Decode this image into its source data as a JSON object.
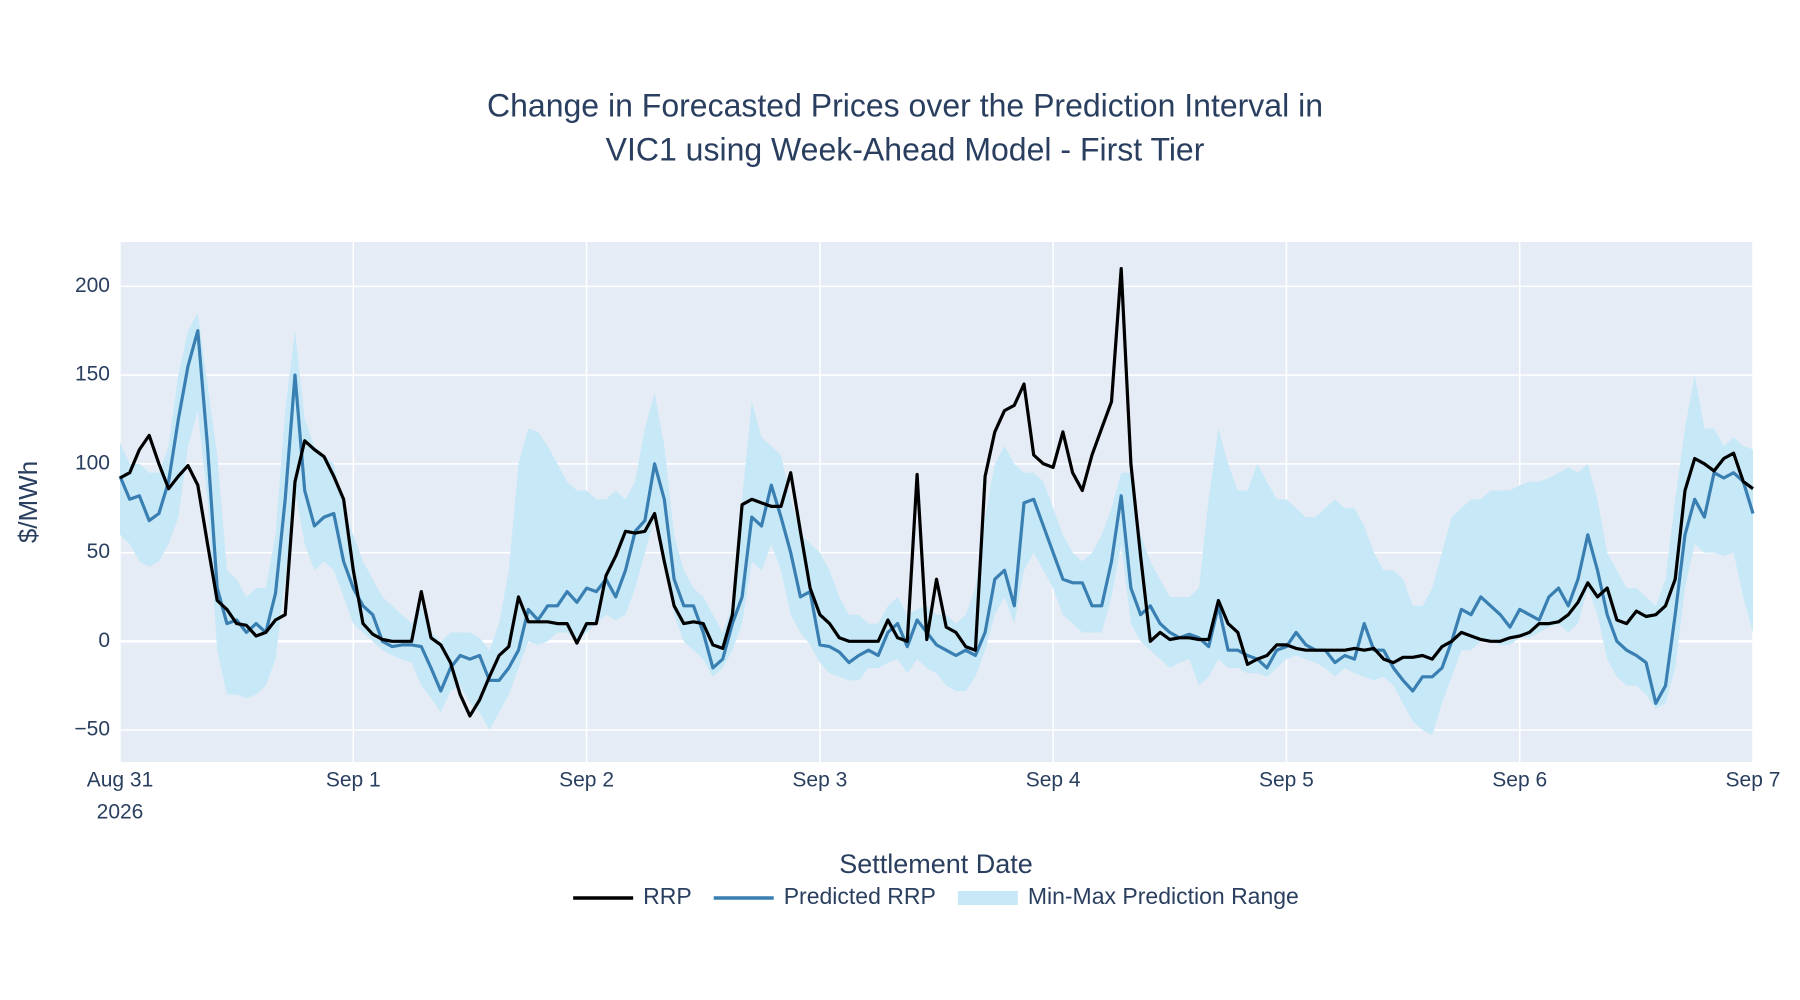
{
  "chart_data": {
    "type": "line",
    "title": [
      "Change in Forecasted Prices over the Prediction Interval in",
      "VIC1 using Week-Ahead Model - First Tier"
    ],
    "xlabel": "Settlement Date",
    "ylabel": "$/MWh",
    "x": [
      "2026-08-31T00:00",
      "2026-08-31T01:00",
      "2026-08-31T02:00",
      "2026-08-31T03:00",
      "2026-08-31T04:00",
      "2026-08-31T05:00",
      "2026-08-31T06:00",
      "2026-08-31T07:00",
      "2026-08-31T08:00",
      "2026-08-31T09:00",
      "2026-08-31T10:00",
      "2026-08-31T11:00",
      "2026-08-31T12:00",
      "2026-08-31T13:00",
      "2026-08-31T14:00",
      "2026-08-31T15:00",
      "2026-08-31T16:00",
      "2026-08-31T17:00",
      "2026-08-31T18:00",
      "2026-08-31T19:00",
      "2026-08-31T20:00",
      "2026-08-31T21:00",
      "2026-08-31T22:00",
      "2026-08-31T23:00",
      "2026-09-01T00:00",
      "2026-09-01T01:00",
      "2026-09-01T02:00",
      "2026-09-01T03:00",
      "2026-09-01T04:00",
      "2026-09-01T05:00",
      "2026-09-01T06:00",
      "2026-09-01T07:00",
      "2026-09-01T08:00",
      "2026-09-01T09:00",
      "2026-09-01T10:00",
      "2026-09-01T11:00",
      "2026-09-01T12:00",
      "2026-09-01T13:00",
      "2026-09-01T14:00",
      "2026-09-01T15:00",
      "2026-09-01T16:00",
      "2026-09-01T17:00",
      "2026-09-01T18:00",
      "2026-09-01T19:00",
      "2026-09-01T20:00",
      "2026-09-01T21:00",
      "2026-09-01T22:00",
      "2026-09-01T23:00",
      "2026-09-02T00:00",
      "2026-09-02T01:00",
      "2026-09-02T02:00",
      "2026-09-02T03:00",
      "2026-09-02T04:00",
      "2026-09-02T05:00",
      "2026-09-02T06:00",
      "2026-09-02T07:00",
      "2026-09-02T08:00",
      "2026-09-02T09:00",
      "2026-09-02T10:00",
      "2026-09-02T11:00",
      "2026-09-02T12:00",
      "2026-09-02T13:00",
      "2026-09-02T14:00",
      "2026-09-02T15:00",
      "2026-09-02T16:00",
      "2026-09-02T17:00",
      "2026-09-02T18:00",
      "2026-09-02T19:00",
      "2026-09-02T20:00",
      "2026-09-02T21:00",
      "2026-09-02T22:00",
      "2026-09-02T23:00",
      "2026-09-03T00:00",
      "2026-09-03T01:00",
      "2026-09-03T02:00",
      "2026-09-03T03:00",
      "2026-09-03T04:00",
      "2026-09-03T05:00",
      "2026-09-03T06:00",
      "2026-09-03T07:00",
      "2026-09-03T08:00",
      "2026-09-03T09:00",
      "2026-09-03T10:00",
      "2026-09-03T11:00",
      "2026-09-03T12:00",
      "2026-09-03T13:00",
      "2026-09-03T14:00",
      "2026-09-03T15:00",
      "2026-09-03T16:00",
      "2026-09-03T17:00",
      "2026-09-03T18:00",
      "2026-09-03T19:00",
      "2026-09-03T20:00",
      "2026-09-03T21:00",
      "2026-09-03T22:00",
      "2026-09-03T23:00",
      "2026-09-04T00:00",
      "2026-09-04T01:00",
      "2026-09-04T02:00",
      "2026-09-04T03:00",
      "2026-09-04T04:00",
      "2026-09-04T05:00",
      "2026-09-04T06:00",
      "2026-09-04T07:00",
      "2026-09-04T08:00",
      "2026-09-04T09:00",
      "2026-09-04T10:00",
      "2026-09-04T11:00",
      "2026-09-04T12:00",
      "2026-09-04T13:00",
      "2026-09-04T14:00",
      "2026-09-04T15:00",
      "2026-09-04T16:00",
      "2026-09-04T17:00",
      "2026-09-04T18:00",
      "2026-09-04T19:00",
      "2026-09-04T20:00",
      "2026-09-04T21:00",
      "2026-09-04T22:00",
      "2026-09-04T23:00",
      "2026-09-05T00:00",
      "2026-09-05T01:00",
      "2026-09-05T02:00",
      "2026-09-05T03:00",
      "2026-09-05T04:00",
      "2026-09-05T05:00",
      "2026-09-05T06:00",
      "2026-09-05T07:00",
      "2026-09-05T08:00",
      "2026-09-05T09:00",
      "2026-09-05T10:00",
      "2026-09-05T11:00",
      "2026-09-05T12:00",
      "2026-09-05T13:00",
      "2026-09-05T14:00",
      "2026-09-05T15:00",
      "2026-09-05T16:00",
      "2026-09-05T17:00",
      "2026-09-05T18:00",
      "2026-09-05T19:00",
      "2026-09-05T20:00",
      "2026-09-05T21:00",
      "2026-09-05T22:00",
      "2026-09-05T23:00",
      "2026-09-06T00:00",
      "2026-09-06T01:00",
      "2026-09-06T02:00",
      "2026-09-06T03:00",
      "2026-09-06T04:00",
      "2026-09-06T05:00",
      "2026-09-06T06:00",
      "2026-09-06T07:00",
      "2026-09-06T08:00",
      "2026-09-06T09:00",
      "2026-09-06T10:00",
      "2026-09-06T11:00",
      "2026-09-06T12:00",
      "2026-09-06T13:00",
      "2026-09-06T14:00",
      "2026-09-06T15:00",
      "2026-09-06T16:00",
      "2026-09-06T17:00",
      "2026-09-06T18:00",
      "2026-09-06T19:00",
      "2026-09-06T20:00",
      "2026-09-06T21:00",
      "2026-09-06T22:00",
      "2026-09-06T23:00",
      "2026-09-07T00:00"
    ],
    "band": {
      "name": "Min-Max Prediction Range",
      "color": "#c6e8f7",
      "max": [
        112,
        100,
        100,
        95,
        95,
        110,
        150,
        175,
        185,
        145,
        105,
        40,
        35,
        25,
        30,
        30,
        60,
        130,
        175,
        125,
        110,
        105,
        100,
        75,
        60,
        45,
        35,
        25,
        20,
        15,
        10,
        20,
        5,
        0,
        5,
        5,
        5,
        2,
        -5,
        10,
        40,
        100,
        120,
        118,
        110,
        100,
        90,
        85,
        85,
        80,
        80,
        85,
        80,
        90,
        120,
        140,
        110,
        60,
        40,
        30,
        25,
        15,
        5,
        20,
        80,
        135,
        115,
        110,
        105,
        80,
        60,
        55,
        50,
        40,
        25,
        15,
        15,
        10,
        10,
        20,
        25,
        15,
        18,
        20,
        15,
        15,
        10,
        15,
        30,
        70,
        100,
        110,
        100,
        95,
        95,
        90,
        75,
        60,
        50,
        45,
        50,
        60,
        75,
        95,
        95,
        60,
        45,
        35,
        25,
        25,
        25,
        30,
        80,
        120,
        100,
        85,
        85,
        100,
        90,
        80,
        80,
        75,
        70,
        70,
        75,
        80,
        75,
        75,
        65,
        50,
        40,
        40,
        35,
        20,
        20,
        30,
        50,
        70,
        75,
        80,
        80,
        85,
        85,
        85,
        88,
        90,
        90,
        92,
        95,
        98,
        95,
        100,
        80,
        50,
        40,
        30,
        30,
        25,
        20,
        35,
        80,
        120,
        150,
        120,
        120,
        110,
        115,
        110,
        108
      ],
      "min": [
        60,
        55,
        45,
        42,
        45,
        55,
        70,
        110,
        130,
        80,
        -5,
        -30,
        -30,
        -32,
        -30,
        -25,
        -10,
        35,
        85,
        55,
        40,
        45,
        40,
        25,
        10,
        5,
        0,
        -5,
        -8,
        -10,
        -12,
        -25,
        -32,
        -40,
        -28,
        -25,
        -35,
        -40,
        -50,
        -40,
        -30,
        -15,
        0,
        -2,
        0,
        5,
        5,
        0,
        5,
        10,
        15,
        12,
        15,
        30,
        50,
        70,
        50,
        15,
        0,
        -5,
        -10,
        -20,
        -15,
        -5,
        10,
        45,
        40,
        55,
        40,
        15,
        5,
        -2,
        -12,
        -18,
        -20,
        -22,
        -22,
        -15,
        -15,
        -12,
        -10,
        -18,
        -10,
        -15,
        -18,
        -25,
        -28,
        -28,
        -20,
        -5,
        15,
        25,
        10,
        40,
        50,
        40,
        30,
        15,
        10,
        5,
        5,
        5,
        25,
        55,
        10,
        0,
        -5,
        -10,
        -15,
        -12,
        -10,
        -25,
        -20,
        -10,
        -15,
        -15,
        -18,
        -18,
        -20,
        -15,
        -10,
        -8,
        -10,
        -12,
        -15,
        -20,
        -15,
        -18,
        -20,
        -22,
        -20,
        -25,
        -35,
        -45,
        -50,
        -53,
        -35,
        -20,
        -5,
        -5,
        0,
        0,
        -2,
        -2,
        2,
        2,
        5,
        8,
        10,
        5,
        10,
        30,
        15,
        -10,
        -20,
        -25,
        -25,
        -30,
        -38,
        -35,
        -15,
        30,
        55,
        50,
        50,
        48,
        50,
        25,
        5
      ]
    },
    "series": [
      {
        "name": "RRP",
        "color": "#000000",
        "values": [
          92,
          95,
          108,
          116,
          100,
          86,
          93,
          99,
          88,
          55,
          23,
          18,
          10,
          9,
          3,
          5,
          12,
          15,
          90,
          113,
          108,
          104,
          93,
          80,
          40,
          10,
          4,
          1,
          0,
          0,
          0,
          28,
          2,
          -2,
          -12,
          -30,
          -42,
          -33,
          -20,
          -8,
          -3,
          25,
          11,
          11,
          11,
          10,
          10,
          -1,
          10,
          10,
          37,
          48,
          62,
          61,
          62,
          72,
          45,
          20,
          10,
          11,
          10,
          -2,
          -4,
          15,
          77,
          80,
          78,
          76,
          76,
          95,
          62,
          30,
          15,
          10,
          2,
          0,
          0,
          0,
          0,
          12,
          2,
          0,
          94,
          1,
          35,
          8,
          5,
          -3,
          -5,
          93,
          118,
          130,
          133,
          145,
          105,
          100,
          98,
          118,
          95,
          85,
          105,
          120,
          135,
          210,
          100,
          48,
          0,
          5,
          1,
          2,
          2,
          1,
          1,
          23,
          10,
          5,
          -13,
          -10,
          -8,
          -2,
          -2,
          -4,
          -5,
          -5,
          -5,
          -5,
          -5,
          -4,
          -5,
          -4,
          -10,
          -12,
          -9,
          -9,
          -8,
          -10,
          -3,
          0,
          5,
          3,
          1,
          0,
          0,
          2,
          3,
          5,
          10,
          10,
          11,
          15,
          22,
          33,
          25,
          30,
          12,
          10,
          17,
          14,
          15,
          20,
          35,
          85,
          103,
          100,
          96,
          103,
          106,
          90,
          86
        ]
      },
      {
        "name": "Predicted RRP",
        "color": "#3a7fb2",
        "values": [
          93,
          80,
          82,
          68,
          72,
          90,
          125,
          155,
          175,
          110,
          30,
          10,
          12,
          5,
          10,
          5,
          27,
          80,
          150,
          85,
          65,
          70,
          72,
          45,
          30,
          20,
          15,
          0,
          -3,
          -2,
          -2,
          -3,
          -15,
          -28,
          -15,
          -8,
          -10,
          -8,
          -22,
          -22,
          -15,
          -5,
          18,
          12,
          20,
          20,
          28,
          22,
          30,
          28,
          35,
          25,
          40,
          62,
          68,
          100,
          80,
          35,
          20,
          20,
          5,
          -15,
          -10,
          10,
          25,
          70,
          65,
          88,
          70,
          50,
          25,
          28,
          -2,
          -3,
          -6,
          -12,
          -8,
          -5,
          -8,
          5,
          10,
          -3,
          12,
          5,
          -2,
          -5,
          -8,
          -5,
          -8,
          5,
          35,
          40,
          20,
          78,
          80,
          65,
          50,
          35,
          33,
          33,
          20,
          20,
          45,
          82,
          30,
          15,
          20,
          10,
          5,
          2,
          4,
          2,
          -3,
          20,
          -5,
          -5,
          -8,
          -10,
          -15,
          -5,
          -3,
          5,
          -2,
          -5,
          -5,
          -12,
          -8,
          -10,
          10,
          -5,
          -5,
          -15,
          -22,
          -28,
          -20,
          -20,
          -15,
          0,
          18,
          15,
          25,
          20,
          15,
          8,
          18,
          15,
          12,
          25,
          30,
          20,
          35,
          60,
          40,
          15,
          0,
          -5,
          -8,
          -12,
          -35,
          -25,
          15,
          60,
          80,
          70,
          95,
          92,
          95,
          90,
          72
        ]
      }
    ],
    "xlim": [
      "2026-08-31",
      "2026-09-07"
    ],
    "xticks": [
      {
        "value": "2026-08-31",
        "label": "Aug 31"
      },
      {
        "value": "2026-09-01",
        "label": "Sep 1"
      },
      {
        "value": "2026-09-02",
        "label": "Sep 2"
      },
      {
        "value": "2026-09-03",
        "label": "Sep 3"
      },
      {
        "value": "2026-09-04",
        "label": "Sep 4"
      },
      {
        "value": "2026-09-05",
        "label": "Sep 5"
      },
      {
        "value": "2026-09-06",
        "label": "Sep 6"
      },
      {
        "value": "2026-09-07",
        "label": "Sep 7"
      }
    ],
    "x_year_label": "2026",
    "ylim": [
      -68,
      225
    ],
    "yticks": [
      {
        "value": -50,
        "label": "−50"
      },
      0,
      50,
      100,
      150,
      200
    ],
    "grid": true,
    "legend": "bottom"
  }
}
